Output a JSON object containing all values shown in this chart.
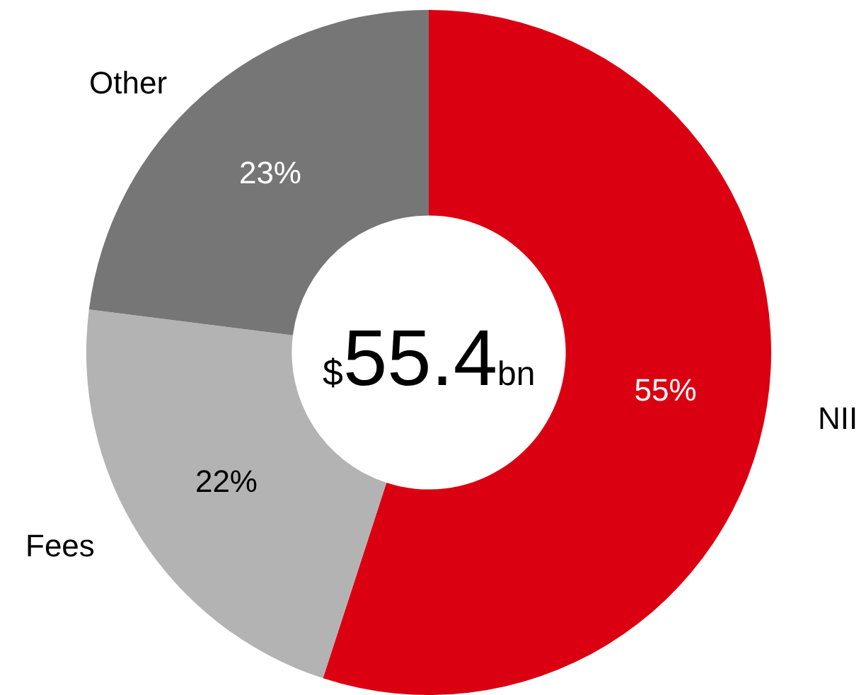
{
  "chart_data": {
    "type": "donut",
    "categories": [
      "NII",
      "Fees",
      "Other"
    ],
    "values": [
      55,
      22,
      23
    ],
    "colors": [
      "#db0011",
      "#b3b3b3",
      "#767676"
    ],
    "value_labels": [
      "55%",
      "22%",
      "23%"
    ],
    "annotations": [
      "$55.4bn"
    ],
    "legend": false
  }
}
